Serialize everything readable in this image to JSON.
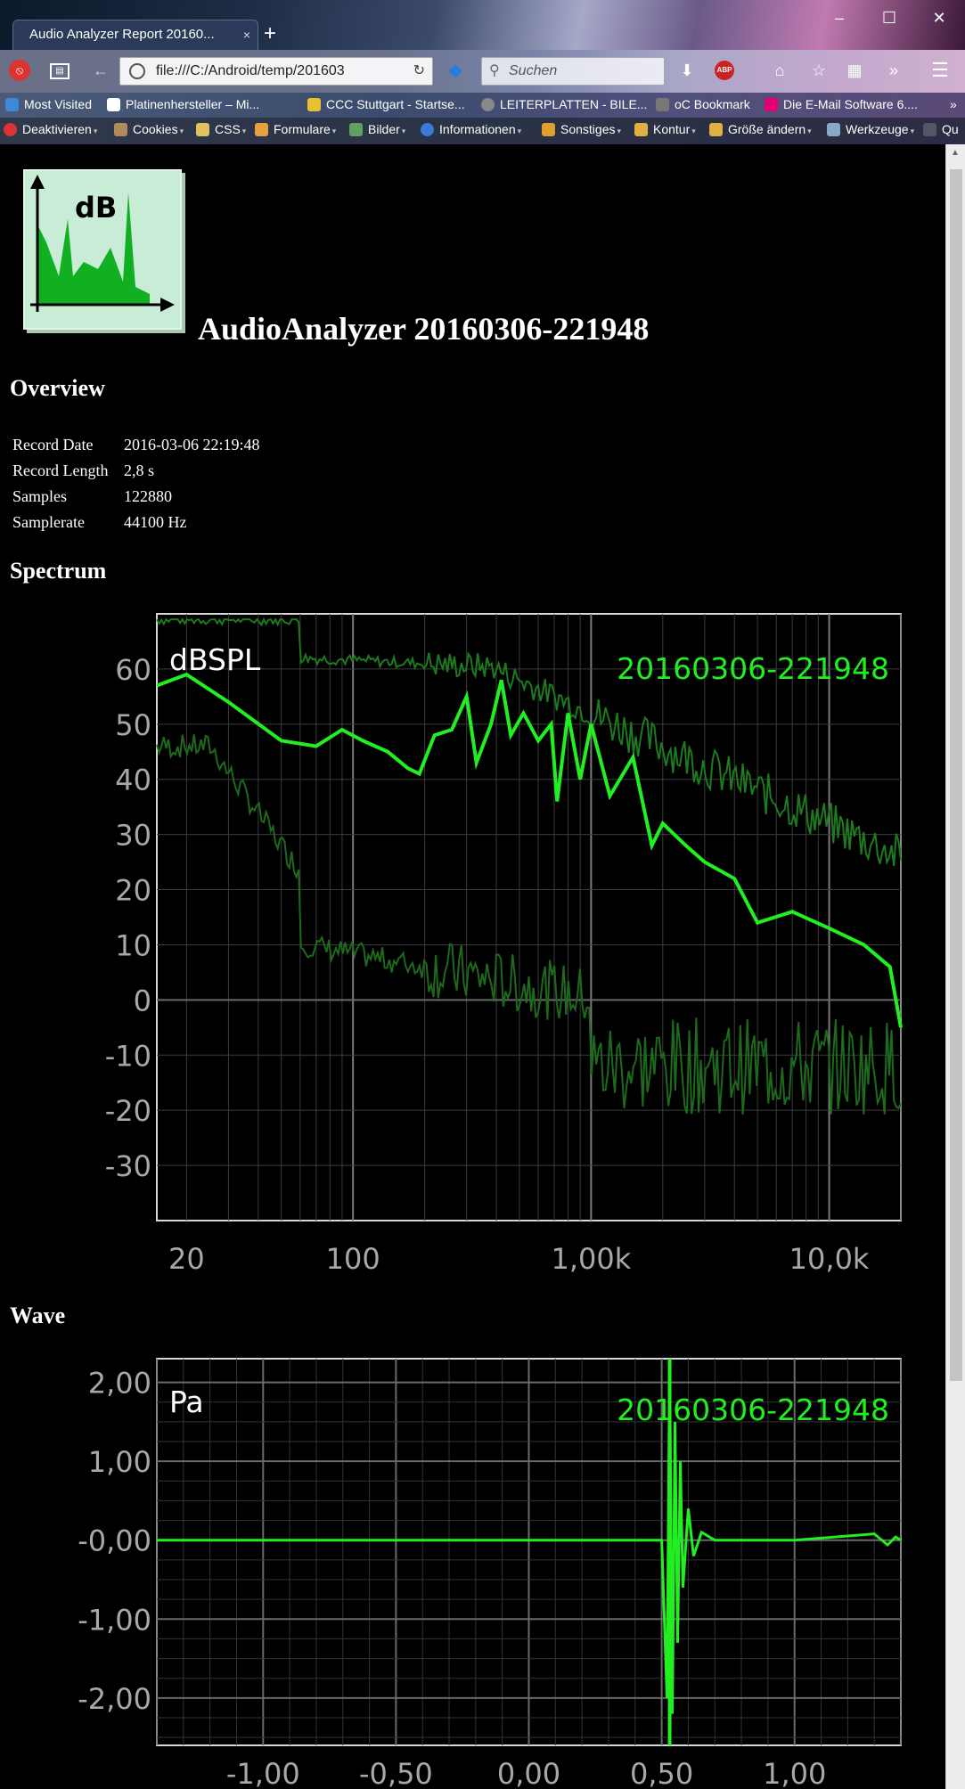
{
  "browser": {
    "tab_title": "Audio Analyzer Report 20160...",
    "tab_close": "×",
    "new_tab": "+",
    "window_buttons": {
      "minimize": "–",
      "maximize": "☐",
      "close": "✕"
    },
    "url": "file:///C:/Android/temp/201603",
    "search_placeholder": "Suchen",
    "bookmarks": [
      "Most Visited",
      "Platinenhersteller – Mi...",
      "CCC Stuttgart - Startse...",
      "LEITERPLATTEN - BILE...",
      "oC Bookmark",
      "Die E-Mail Software 6...."
    ],
    "bookmarks_more": "»",
    "toolbar_items": [
      "Deaktivieren",
      "Cookies",
      "CSS",
      "Formulare",
      "Bilder",
      "Informationen",
      "Sonstiges",
      "Kontur",
      "Größe ändern",
      "Werkzeuge",
      "Qu"
    ],
    "colors": {
      "accent": "#22ee22",
      "background": "#000000"
    }
  },
  "report": {
    "logo_text": "dB",
    "title": "AudioAnalyzer 20160306-221948",
    "overview": {
      "heading": "Overview",
      "rows": [
        {
          "label": "Record Date",
          "value": "2016-03-06 22:19:48"
        },
        {
          "label": "Record Length",
          "value": "2,8 s"
        },
        {
          "label": "Samples",
          "value": "122880"
        },
        {
          "label": "Samplerate",
          "value": "44100 Hz"
        }
      ]
    },
    "spectrum": {
      "heading": "Spectrum",
      "unit": "dBSPL",
      "series_label": "20160306-221948",
      "y_ticks": [
        "60",
        "50",
        "40",
        "30",
        "20",
        "10",
        "0",
        "-10",
        "-20",
        "-30"
      ],
      "x_ticks": [
        "20",
        "100",
        "1,00k",
        "10,0k"
      ]
    },
    "wave": {
      "heading": "Wave",
      "unit": "Pa",
      "series_label": "20160306-221948",
      "y_ticks": [
        "2,00",
        "1,00",
        "-0,00",
        "-1,00",
        "-2,00"
      ],
      "x_ticks": [
        "-1,00",
        "-0,50",
        "0,00",
        "0,50",
        "1,00"
      ]
    }
  },
  "chart_data": [
    {
      "type": "line",
      "ylabel": "dBSPL",
      "legend": "top-right",
      "series": [
        {
          "name": "20160306-221948",
          "x": [
            15,
            20,
            30,
            50,
            70,
            90,
            110,
            140,
            170,
            190,
            220,
            260,
            300,
            330,
            380,
            420,
            460,
            520,
            600,
            680,
            720,
            800,
            900,
            1000,
            1200,
            1500,
            1800,
            2000,
            2500,
            3000,
            4000,
            5000,
            7000,
            10000,
            14000,
            18000,
            20000
          ],
          "y": [
            57,
            59,
            54,
            47,
            46,
            49,
            47,
            45,
            42,
            41,
            48,
            49,
            55,
            43,
            50,
            58,
            48,
            52,
            47,
            50,
            36,
            52,
            40,
            50,
            37,
            44,
            28,
            32,
            28,
            25,
            22,
            14,
            16,
            13,
            10,
            6,
            -5
          ]
        }
      ],
      "grid": true,
      "xscale": "log",
      "xlim": [
        15,
        20000
      ],
      "ylim": [
        -40,
        70
      ]
    },
    {
      "type": "line",
      "ylabel": "Pa",
      "legend": "top-right",
      "series": [
        {
          "name": "20160306-221948",
          "x": [
            -1.4,
            -1.0,
            -0.5,
            0.0,
            0.5,
            0.52,
            0.53,
            0.54,
            0.55,
            0.56,
            0.57,
            0.58,
            0.6,
            0.62,
            0.65,
            0.7,
            0.8,
            1.0,
            1.3,
            1.35,
            1.38,
            1.4
          ],
          "y": [
            0,
            0,
            0,
            0,
            0,
            -2.0,
            2.3,
            -2.2,
            1.5,
            -1.3,
            1.0,
            -0.6,
            0.4,
            -0.2,
            0.1,
            0,
            0,
            0,
            0.08,
            -0.06,
            0.04,
            0
          ]
        }
      ],
      "grid": true,
      "xlim": [
        -1.4,
        1.4
      ],
      "ylim": [
        -2.6,
        2.3
      ]
    }
  ]
}
